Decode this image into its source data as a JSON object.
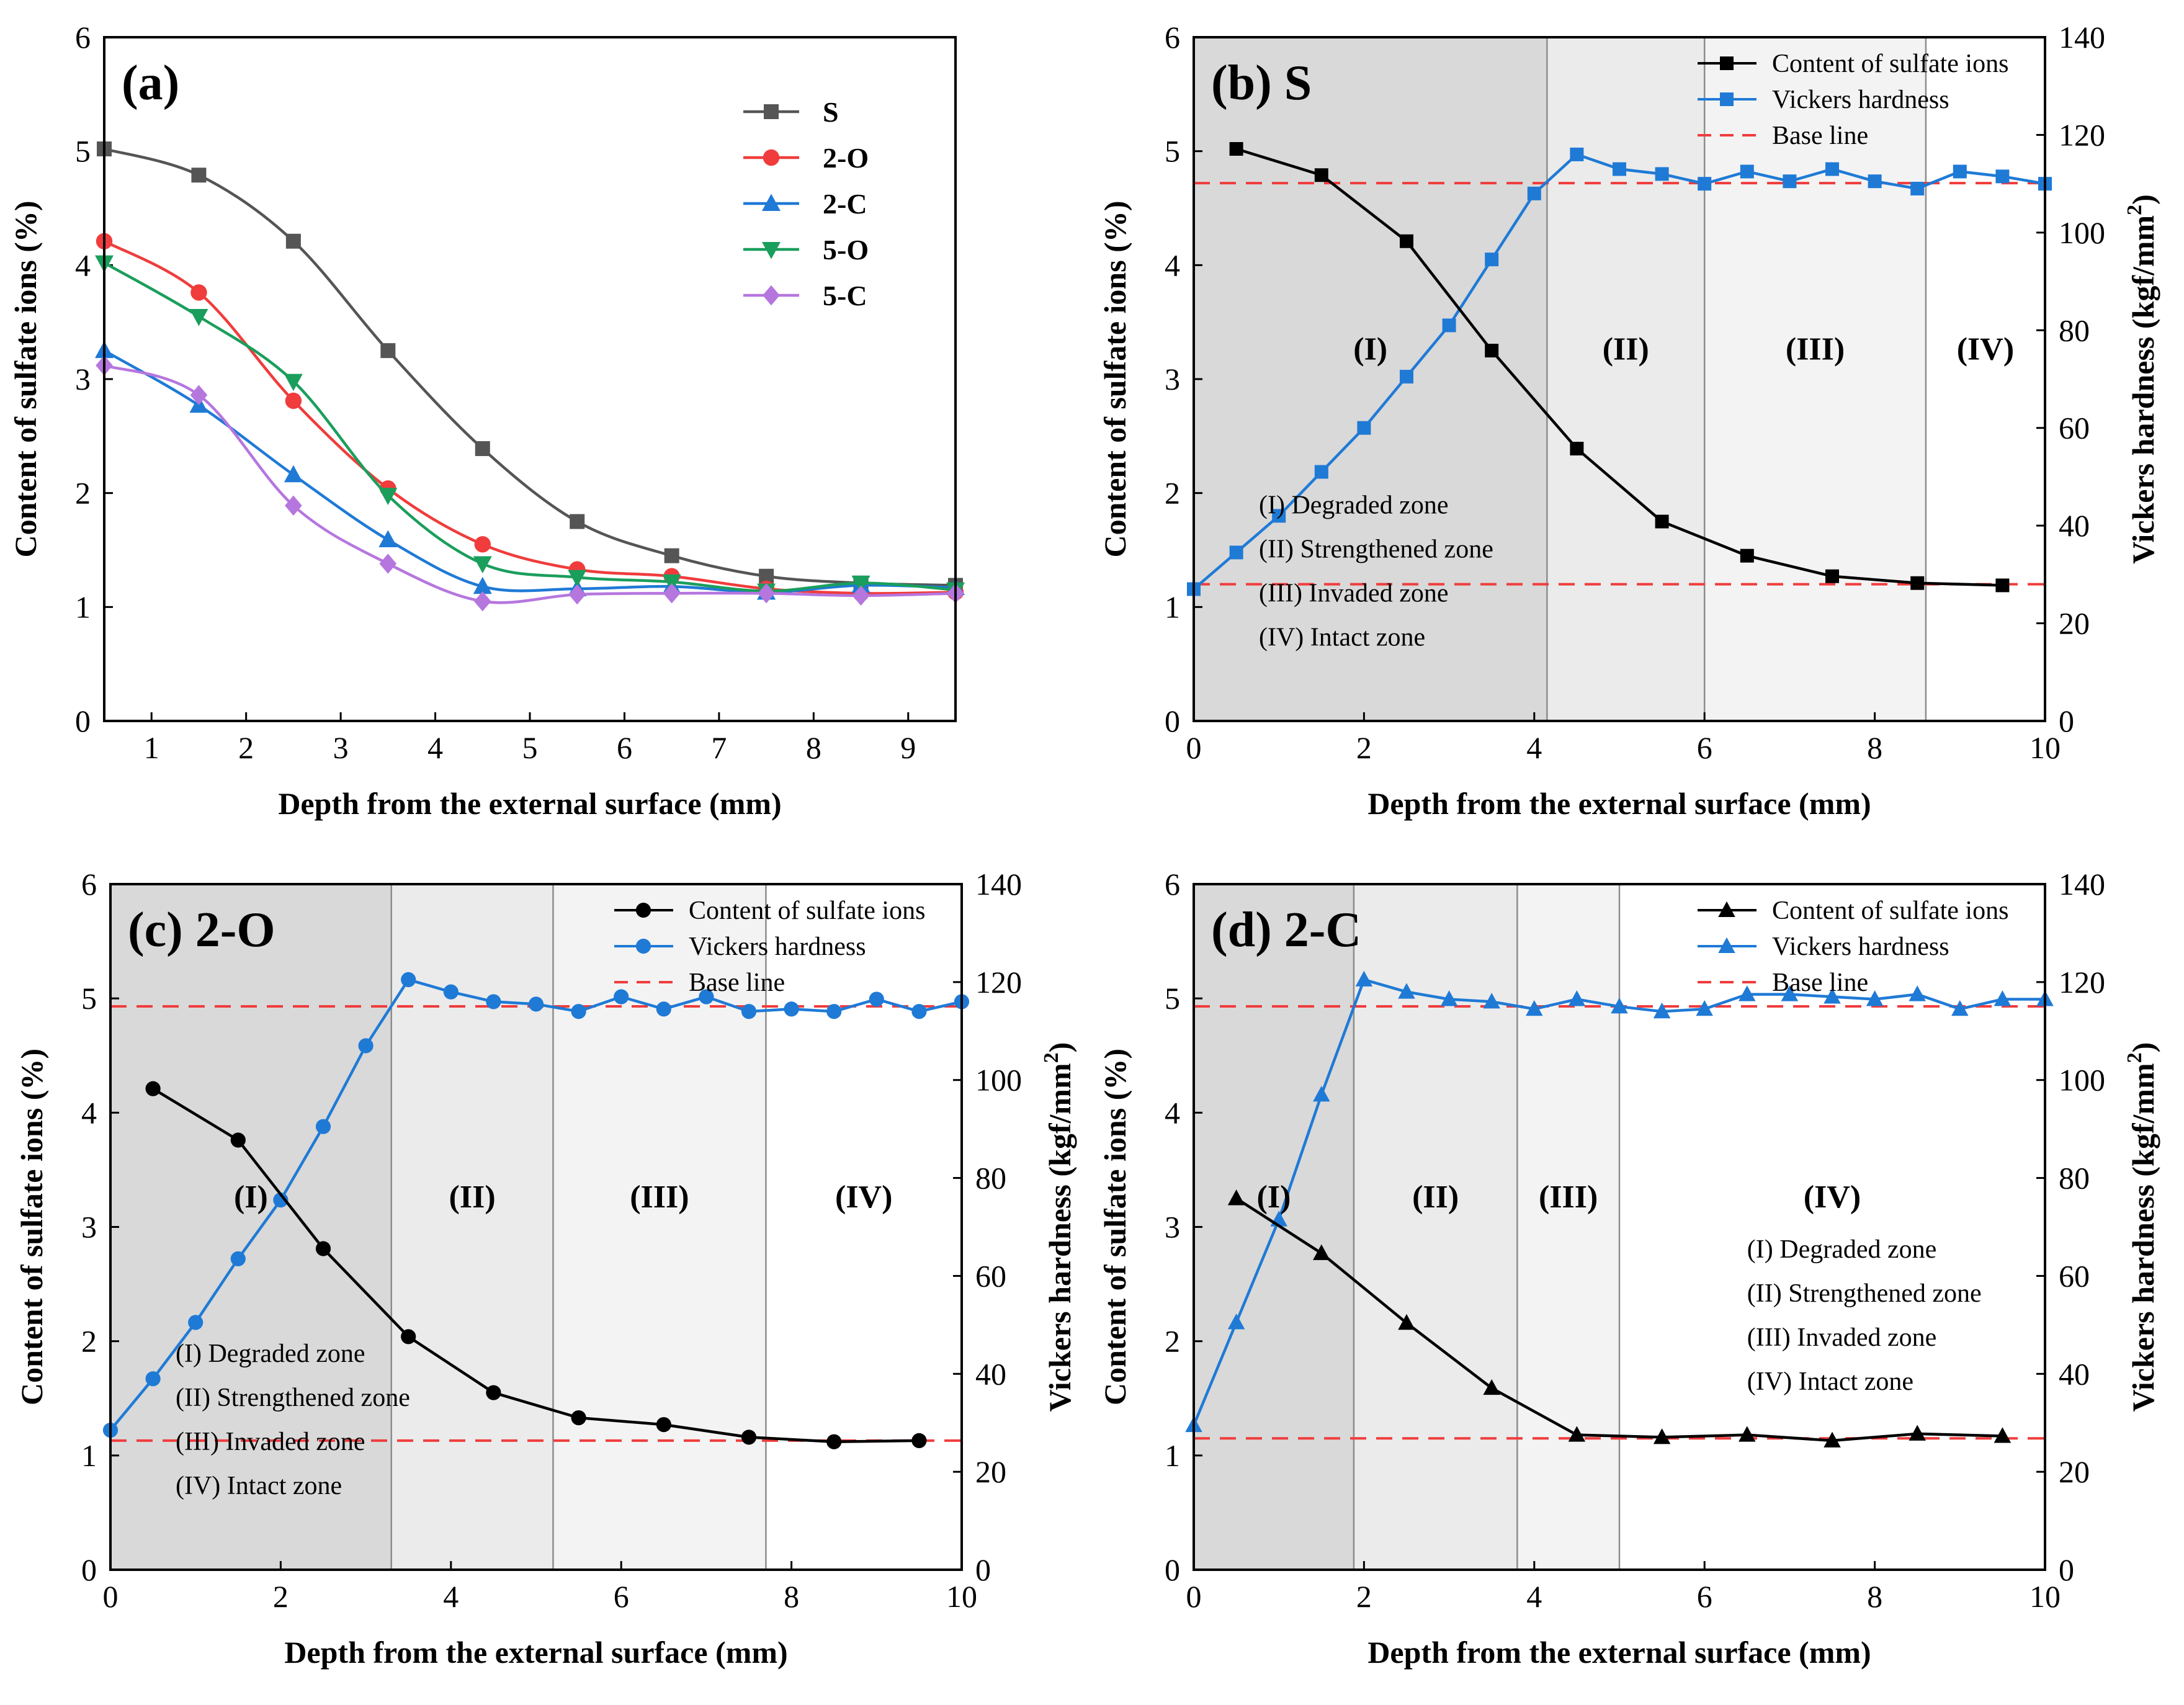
{
  "figure": {
    "description_free": true
  },
  "chart_data": [
    {
      "id": "a",
      "type": "line",
      "title": "(a)",
      "xlabel": "Depth from the external surface (mm)",
      "ylabel": "Content of sulfate ions (%)",
      "xlim": [
        0.5,
        9.5
      ],
      "ylim": [
        0,
        6
      ],
      "xticks": [
        1,
        2,
        3,
        4,
        5,
        6,
        7,
        8,
        9
      ],
      "yticks": [
        0,
        1,
        2,
        3,
        4,
        5,
        6
      ],
      "legend_position": "top-right",
      "x": [
        0.5,
        1.5,
        2.5,
        3.5,
        4.5,
        5.5,
        6.5,
        7.5,
        8.5,
        9.5
      ],
      "series": [
        {
          "name": "S",
          "color": "#555555",
          "marker": "square",
          "values": [
            5.02,
            4.79,
            4.21,
            3.25,
            2.39,
            1.75,
            1.45,
            1.27,
            1.21,
            1.19
          ]
        },
        {
          "name": "2-O",
          "color": "#f03c3c",
          "marker": "circle",
          "values": [
            4.21,
            3.76,
            2.81,
            2.04,
            1.55,
            1.33,
            1.27,
            1.16,
            1.12,
            1.13
          ]
        },
        {
          "name": "2-C",
          "color": "#1f7ad6",
          "marker": "triangle",
          "values": [
            3.25,
            2.77,
            2.16,
            1.59,
            1.18,
            1.16,
            1.18,
            1.13,
            1.19,
            1.17
          ]
        },
        {
          "name": "5-O",
          "color": "#1a9e5c",
          "marker": "triangle-down",
          "values": [
            4.02,
            3.55,
            2.98,
            1.98,
            1.38,
            1.26,
            1.22,
            1.14,
            1.21,
            1.15
          ]
        },
        {
          "name": "5-C",
          "color": "#b576de",
          "marker": "diamond",
          "values": [
            3.12,
            2.86,
            1.89,
            1.38,
            1.05,
            1.11,
            1.12,
            1.12,
            1.1,
            1.12
          ]
        }
      ]
    },
    {
      "id": "b",
      "type": "line",
      "title": "(b) S",
      "xlabel": "Depth from the external surface (mm)",
      "ylabel": "Content of sulfate ions (%)",
      "y2label": "Vickers hardness (kgf/mm",
      "y2label_sup": "2",
      "y2label_end": ")",
      "xlim": [
        0,
        10
      ],
      "ylim": [
        0,
        6
      ],
      "y2lim": [
        0,
        140
      ],
      "xticks": [
        0,
        2,
        4,
        6,
        8,
        10
      ],
      "yticks": [
        0,
        1,
        2,
        3,
        4,
        5,
        6
      ],
      "y2ticks": [
        0,
        20,
        40,
        60,
        80,
        100,
        120,
        140
      ],
      "marker": "square",
      "legend_position": "top-right",
      "legend": [
        "Content of sulfate ions",
        "Vickers hardness",
        "Base line"
      ],
      "sulfate": {
        "x": [
          0.5,
          1.5,
          2.5,
          3.5,
          4.5,
          5.5,
          6.5,
          7.5,
          8.5,
          9.5
        ],
        "values": [
          5.02,
          4.79,
          4.21,
          3.25,
          2.39,
          1.75,
          1.45,
          1.27,
          1.21,
          1.19
        ]
      },
      "hardness": {
        "x": [
          0,
          0.5,
          1,
          1.5,
          2,
          2.5,
          3,
          3.5,
          4,
          4.5,
          5,
          5.5,
          6,
          6.5,
          7,
          7.5,
          8,
          8.5,
          9,
          9.5,
          10
        ],
        "values": [
          27,
          34.5,
          42,
          51,
          60,
          70.5,
          81,
          94.5,
          108,
          116,
          113,
          112,
          110,
          112.5,
          110.5,
          113,
          110.5,
          109,
          112.5,
          111.5,
          110
        ]
      },
      "baselines_y": [
        4.72,
        1.2
      ],
      "zone_boundaries": [
        4.15,
        6.0,
        8.6
      ],
      "zone_shades": [
        "#d9d9d9",
        "#ebebeb",
        "#f3f3f3",
        "#ffffff"
      ],
      "zones": [
        "(I)",
        "(II)",
        "(III)",
        "(IV)"
      ],
      "zone_label_y": 3.27,
      "zone_descriptions": [
        "(I) Degraded zone",
        "(II) Strengthened zone",
        "(III) Invaded zone",
        "(IV) Intact zone"
      ],
      "description_position": "bottom-left"
    },
    {
      "id": "c",
      "type": "line",
      "title": "(c) 2-O",
      "xlabel": "Depth from the external surface (mm)",
      "ylabel": "Content of sulfate ions (%)",
      "y2label": "Vickers hardness (kgf/mm",
      "y2label_sup": "2",
      "y2label_end": ")",
      "xlim": [
        0,
        10
      ],
      "ylim": [
        0,
        6
      ],
      "y2lim": [
        0,
        140
      ],
      "xticks": [
        0,
        2,
        4,
        6,
        8,
        10
      ],
      "yticks": [
        0,
        1,
        2,
        3,
        4,
        5,
        6
      ],
      "y2ticks": [
        0,
        20,
        40,
        60,
        80,
        100,
        120,
        140
      ],
      "marker": "circle",
      "legend_position": "top-right",
      "legend": [
        "Content of sulfate ions",
        "Vickers hardness",
        "Base line"
      ],
      "sulfate": {
        "x": [
          0.5,
          1.5,
          2.5,
          3.5,
          4.5,
          5.5,
          6.5,
          7.5,
          8.5,
          9.5
        ],
        "values": [
          4.21,
          3.76,
          2.81,
          2.04,
          1.55,
          1.33,
          1.27,
          1.16,
          1.12,
          1.13
        ]
      },
      "hardness": {
        "x": [
          0,
          0.5,
          1,
          1.5,
          2,
          2.5,
          3,
          3.5,
          4,
          4.5,
          5,
          5.5,
          6,
          6.5,
          7,
          7.5,
          8,
          8.5,
          9,
          9.5,
          10
        ],
        "values": [
          28.5,
          39,
          50.5,
          63.5,
          75.5,
          90.5,
          107,
          120.5,
          118,
          116,
          115.5,
          114,
          117,
          114.5,
          117,
          114,
          114.5,
          114,
          116.5,
          114,
          116
        ]
      },
      "baselines_y": [
        4.93,
        1.13
      ],
      "zone_boundaries": [
        3.3,
        5.2,
        7.7
      ],
      "zone_shades": [
        "#d9d9d9",
        "#ebebeb",
        "#f3f3f3",
        "#ffffff"
      ],
      "zones": [
        "(I)",
        "(II)",
        "(III)",
        "(IV)"
      ],
      "zone_label_y": 3.27,
      "zone_descriptions": [
        "(I) Degraded zone",
        "(II) Strengthened zone",
        "(III) Invaded zone",
        "(IV) Intact zone"
      ],
      "description_position": "bottom-left"
    },
    {
      "id": "d",
      "type": "line",
      "title": "(d) 2-C",
      "xlabel": "Depth from the external surface (mm)",
      "ylabel": "Content of sulfate ions (%)",
      "y2label": "Vickers hardness (kgf/mm",
      "y2label_sup": "2",
      "y2label_end": ")",
      "xlim": [
        0,
        10
      ],
      "ylim": [
        0,
        6
      ],
      "y2lim": [
        0,
        140
      ],
      "xticks": [
        0,
        2,
        4,
        6,
        8,
        10
      ],
      "yticks": [
        0,
        1,
        2,
        3,
        4,
        5,
        6
      ],
      "y2ticks": [
        0,
        20,
        40,
        60,
        80,
        100,
        120,
        140
      ],
      "marker": "triangle",
      "legend_position": "top-right",
      "legend": [
        "Content of sulfate ions",
        "Vickers hardness",
        "Base line"
      ],
      "sulfate": {
        "x": [
          0.5,
          1.5,
          2.5,
          3.5,
          4.5,
          5.5,
          6.5,
          7.5,
          8.5,
          9.5
        ],
        "values": [
          3.25,
          2.77,
          2.16,
          1.59,
          1.18,
          1.16,
          1.18,
          1.13,
          1.19,
          1.17
        ]
      },
      "hardness": {
        "x": [
          0,
          0.5,
          1,
          1.5,
          2,
          2.5,
          3,
          3.5,
          4,
          4.5,
          5,
          5.5,
          6,
          6.5,
          7,
          7.5,
          8,
          8.5,
          9,
          9.5,
          10
        ],
        "values": [
          29.5,
          50.5,
          71.5,
          97,
          120.5,
          118,
          116.5,
          116,
          114.5,
          116.5,
          115,
          114,
          114.5,
          117.5,
          117.5,
          117,
          116.5,
          117.5,
          114.5,
          116.5,
          116.5
        ]
      },
      "baselines_y": [
        4.93,
        1.15
      ],
      "zone_boundaries": [
        1.88,
        3.8,
        5.0
      ],
      "zone_shades": [
        "#d9d9d9",
        "#ebebeb",
        "#f3f3f3",
        "#ffffff"
      ],
      "zones": [
        "(I)",
        "(II)",
        "(III)",
        "(IV)"
      ],
      "zone_label_y": 3.27,
      "zone_descriptions": [
        "(I) Degraded zone",
        "(II) Strengthened zone",
        "(III) Invaded zone",
        "(IV) Intact zone"
      ],
      "description_position": "right"
    }
  ]
}
